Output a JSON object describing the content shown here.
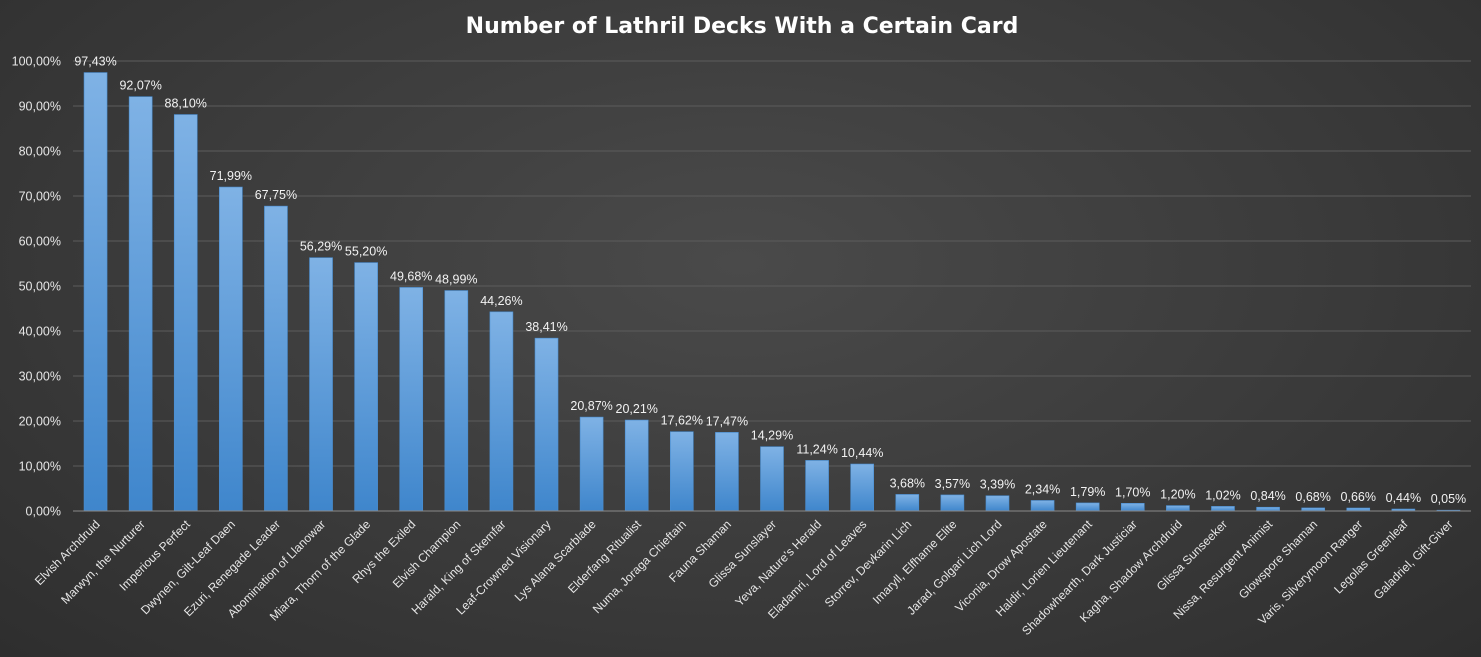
{
  "chart_data": {
    "type": "bar",
    "title": "Number of Lathril Decks With a Certain Card",
    "xlabel": "",
    "ylabel": "",
    "ylim": [
      0,
      100
    ],
    "yticks": [
      {
        "value": 0,
        "label": "0,00%"
      },
      {
        "value": 10,
        "label": "10,00%"
      },
      {
        "value": 20,
        "label": "20,00%"
      },
      {
        "value": 30,
        "label": "30,00%"
      },
      {
        "value": 40,
        "label": "40,00%"
      },
      {
        "value": 50,
        "label": "50,00%"
      },
      {
        "value": 60,
        "label": "60,00%"
      },
      {
        "value": 70,
        "label": "70,00%"
      },
      {
        "value": 80,
        "label": "80,00%"
      },
      {
        "value": 90,
        "label": "90,00%"
      },
      {
        "value": 100,
        "label": "100,00%"
      }
    ],
    "grid": true,
    "legend": "none",
    "bar_color": "#5b9bd5",
    "categories": [
      "Elvish Archdruid",
      "Marwyn, the Nurturer",
      "Imperious Perfect",
      "Dwynen, Gilt-Leaf Daen",
      "Ezuri, Renegade Leader",
      "Abomination of Llanowar",
      "Miara, Thorn of the Glade",
      "Rhys the Exiled",
      "Elvish Champion",
      "Harald, King of Skemfar",
      "Leaf-Crowned Visionary",
      "Lys Alana Scarblade",
      "Elderfang Ritualist",
      "Numa, Joraga Chieftain",
      "Fauna Shaman",
      "Glissa Sunslayer",
      "Yeva, Nature's Herald",
      "Eladamri, Lord of Leaves",
      "Storrev, Devkarin Lich",
      "Imaryll, Elfhame Elite",
      "Jarad, Golgari Lich Lord",
      "Viconia, Drow Apostate",
      "Haldir, Lorien Lieutenant",
      "Shadowhearth, Dark Justiciar",
      "Kagha, Shadow Archdruid",
      "Glissa Sunseeker",
      "Nissa, Resurgent Animist",
      "Glowspore Shaman",
      "Varis, Silverymoon Ranger",
      "Legolas Greenleaf",
      "Galadriel, Gift-Giver"
    ],
    "values": [
      97.43,
      92.07,
      88.1,
      71.99,
      67.75,
      56.29,
      55.2,
      49.68,
      48.99,
      44.26,
      38.41,
      20.87,
      20.21,
      17.62,
      17.47,
      14.29,
      11.24,
      10.44,
      3.68,
      3.57,
      3.39,
      2.34,
      1.79,
      1.7,
      1.2,
      1.02,
      0.84,
      0.68,
      0.66,
      0.44,
      0.05
    ],
    "labels": [
      "97,43%",
      "92,07%",
      "88,10%",
      "71,99%",
      "67,75%",
      "56,29%",
      "55,20%",
      "49,68%",
      "48,99%",
      "44,26%",
      "38,41%",
      "20,87%",
      "20,21%",
      "17,62%",
      "17,47%",
      "14,29%",
      "11,24%",
      "10,44%",
      "3,68%",
      "3,57%",
      "3,39%",
      "2,34%",
      "1,79%",
      "1,70%",
      "1,20%",
      "1,02%",
      "0,84%",
      "0,68%",
      "0,66%",
      "0,44%",
      "0,05%"
    ]
  }
}
